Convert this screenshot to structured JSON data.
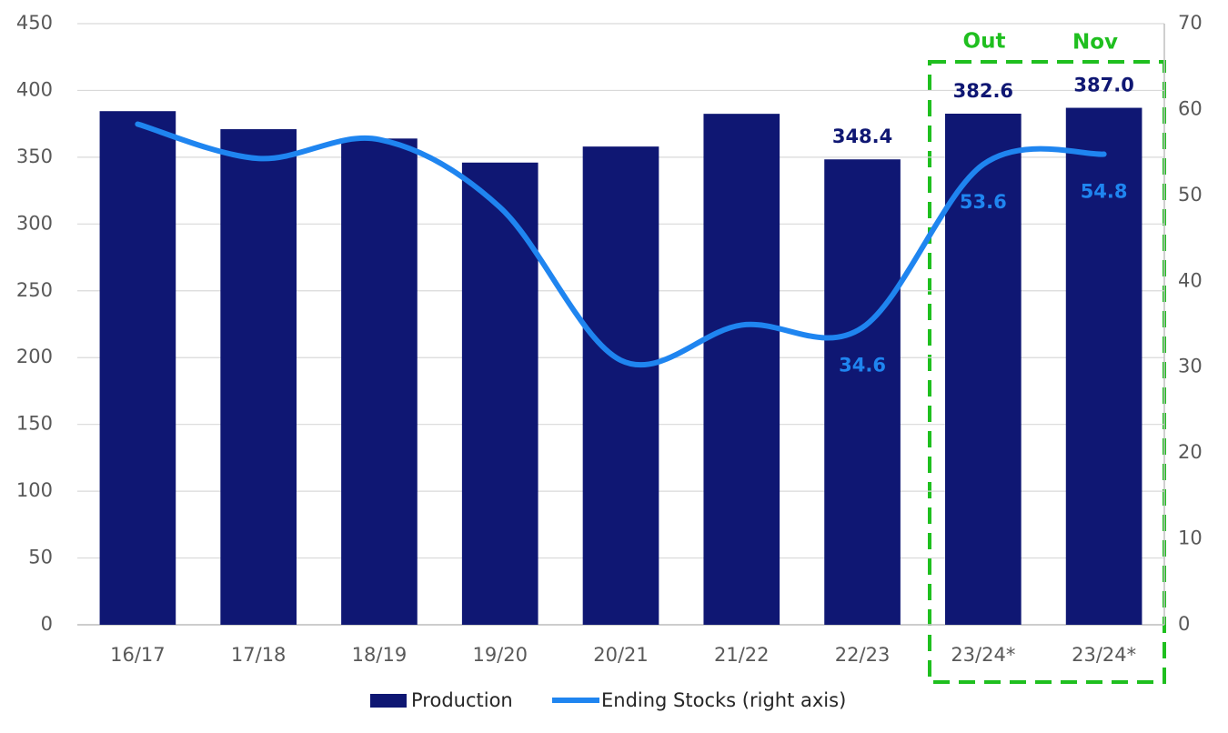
{
  "chart_data": {
    "type": "bar-line",
    "categories": [
      "16/17",
      "17/18",
      "18/19",
      "19/20",
      "20/21",
      "21/22",
      "22/23",
      "23/24*",
      "23/24*"
    ],
    "series": [
      {
        "name": "Production",
        "type": "bar",
        "color": "#0f1773",
        "values": [
          384.5,
          371,
          364,
          346,
          358,
          382.5,
          348.4,
          382.6,
          387.0
        ],
        "value_labels": [
          null,
          null,
          null,
          null,
          null,
          null,
          "348.4",
          "382.6",
          "387.0"
        ]
      },
      {
        "name": "Ending Stocks (right axis)",
        "type": "line",
        "axis": "y2",
        "color": "#1f85f0",
        "values": [
          58.3,
          54.3,
          56.5,
          48.6,
          30.8,
          34.9,
          34.6,
          53.6,
          54.8
        ],
        "value_labels": [
          null,
          null,
          null,
          null,
          null,
          null,
          "34.6",
          "53.6",
          "54.8"
        ]
      }
    ],
    "ylim": [
      0,
      450
    ],
    "yticks": [
      0,
      50,
      100,
      150,
      200,
      250,
      300,
      350,
      400,
      450
    ],
    "y2lim": [
      0,
      70
    ],
    "y2ticks": [
      0,
      10,
      20,
      30,
      40,
      50,
      60,
      70
    ],
    "grid": true,
    "annotations": [
      "Out",
      "Nov"
    ]
  }
}
